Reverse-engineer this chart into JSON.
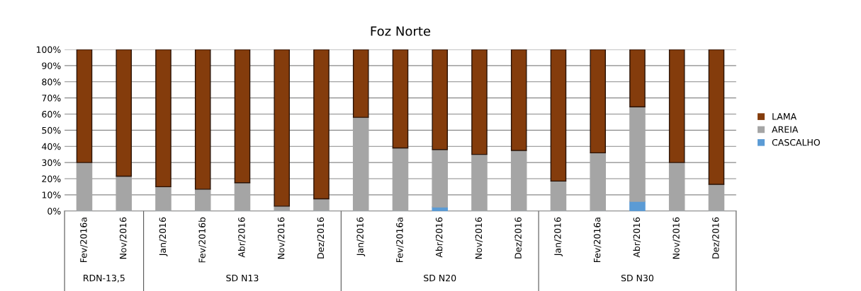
{
  "chart_data": {
    "type": "bar",
    "title": "Foz Norte",
    "stacked": true,
    "categories": [
      "Fev/2016a",
      "Nov/2016",
      "Jan/2016",
      "Fev/2016b",
      "Abr/2016",
      "Nov/2016",
      "Dez/2016",
      "Jan/2016",
      "Fev/2016a",
      "Abr/2016",
      "Nov/2016",
      "Dez/2016",
      "Jan/2016",
      "Fev/2016a",
      "Abr/2016",
      "Nov/2016",
      "Dez/2016"
    ],
    "annotations": [
      "RDN-13,5",
      "SD N13",
      "SD N20",
      "SD N30"
    ],
    "series": [
      {
        "name": "CASCALHO",
        "color": "#5b9bd5",
        "values": [
          0,
          0,
          0,
          0,
          0,
          0,
          0,
          0,
          0,
          2.5,
          0,
          0,
          0,
          0,
          6,
          0,
          0
        ]
      },
      {
        "name": "AREIA",
        "color": "#a5a5a5",
        "values": [
          30,
          21.5,
          15,
          13.5,
          17.5,
          3,
          7.5,
          58,
          39,
          35.5,
          35,
          37.5,
          18.5,
          36,
          58.5,
          30,
          16.5
        ]
      },
      {
        "name": "LAMA",
        "color": "#843c0c",
        "values": [
          70,
          78.5,
          85,
          86.5,
          82.5,
          97,
          92.5,
          42,
          61,
          62,
          65,
          62.5,
          81.5,
          64,
          35.5,
          70,
          83.5
        ]
      }
    ],
    "ylim": [
      0,
      100
    ],
    "yticks": [
      {
        "value": 0,
        "label": "0%"
      },
      {
        "value": 10,
        "label": "10%"
      },
      {
        "value": 20,
        "label": "20%"
      },
      {
        "value": 30,
        "label": "30%"
      },
      {
        "value": 40,
        "label": "40%"
      },
      {
        "value": 50,
        "label": "50%"
      },
      {
        "value": 60,
        "label": "60%"
      },
      {
        "value": 70,
        "label": "70%"
      },
      {
        "value": 80,
        "label": "80%"
      },
      {
        "value": 90,
        "label": "90%"
      },
      {
        "value": 100,
        "label": "100%"
      }
    ],
    "grid": "y",
    "legend": "right"
  }
}
